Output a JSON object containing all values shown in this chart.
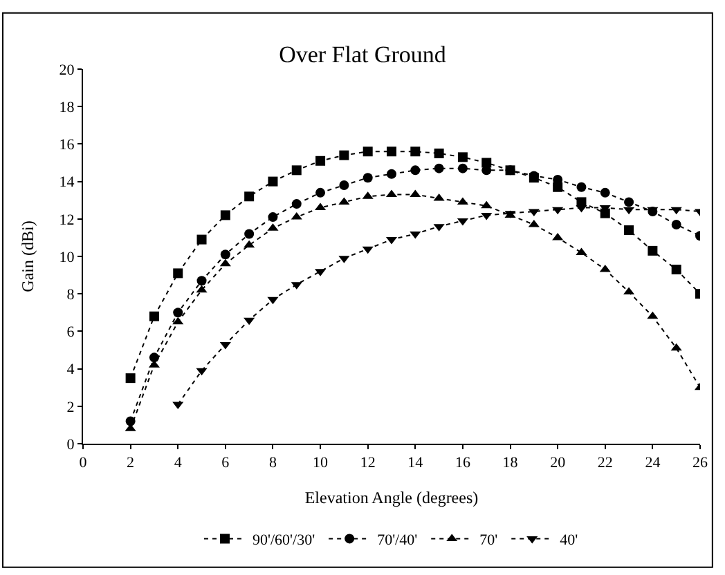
{
  "chart_data": {
    "type": "line",
    "title": "Over Flat Ground",
    "xlabel": "Elevation Angle (degrees)",
    "ylabel": "Gain (dBi)",
    "xlim": [
      0,
      26
    ],
    "xticks": [
      0,
      2,
      4,
      6,
      8,
      10,
      12,
      14,
      16,
      18,
      20,
      22,
      24,
      26
    ],
    "ylim": [
      0,
      20
    ],
    "yticks": [
      0,
      2,
      4,
      6,
      8,
      10,
      12,
      14,
      16,
      18,
      20
    ],
    "legend": "bottom",
    "line_style": "dotted",
    "series": [
      {
        "name": "90'/60'/30'",
        "color": "#000000",
        "marker": "square",
        "x": [
          2,
          3,
          4,
          5,
          6,
          7,
          8,
          9,
          10,
          11,
          12,
          13,
          14,
          15,
          16,
          17,
          18,
          19,
          20,
          21,
          22,
          23,
          24,
          25,
          26
        ],
        "values": [
          3.5,
          6.8,
          9.1,
          10.9,
          12.2,
          13.2,
          14.0,
          14.6,
          15.1,
          15.4,
          15.6,
          15.6,
          15.6,
          15.5,
          15.3,
          15.0,
          14.6,
          14.2,
          13.7,
          12.9,
          12.3,
          11.4,
          10.3,
          9.3,
          8.0
        ]
      },
      {
        "name": "70'/40'",
        "color": "#000000",
        "marker": "circle",
        "x": [
          2,
          3,
          4,
          5,
          6,
          7,
          8,
          9,
          10,
          11,
          12,
          13,
          14,
          15,
          16,
          17,
          18,
          19,
          20,
          21,
          22,
          23,
          24,
          25,
          26
        ],
        "values": [
          1.2,
          4.6,
          7.0,
          8.7,
          10.1,
          11.2,
          12.1,
          12.8,
          13.4,
          13.8,
          14.2,
          14.4,
          14.6,
          14.7,
          14.7,
          14.6,
          14.6,
          14.3,
          14.1,
          13.7,
          13.4,
          12.9,
          12.4,
          11.7,
          11.1
        ]
      },
      {
        "name": "70'",
        "color": "#000000",
        "marker": "triangle",
        "x": [
          2,
          3,
          4,
          5,
          6,
          7,
          8,
          9,
          10,
          11,
          12,
          13,
          14,
          15,
          16,
          17,
          18,
          19,
          20,
          21,
          22,
          23,
          24,
          25,
          26
        ],
        "values": [
          0.8,
          4.2,
          6.5,
          8.2,
          9.6,
          10.6,
          11.5,
          12.1,
          12.6,
          12.9,
          13.2,
          13.3,
          13.3,
          13.1,
          12.9,
          12.7,
          12.2,
          11.7,
          11.0,
          10.2,
          9.3,
          8.1,
          6.8,
          5.1,
          3.0
        ]
      },
      {
        "name": "40'",
        "color": "#000000",
        "marker": "triangle-down",
        "x": [
          4,
          5,
          6,
          7,
          8,
          9,
          10,
          11,
          12,
          13,
          14,
          15,
          16,
          17,
          18,
          19,
          20,
          21,
          22,
          23,
          24,
          25,
          26
        ],
        "values": [
          2.1,
          3.9,
          5.3,
          6.6,
          7.7,
          8.5,
          9.2,
          9.9,
          10.4,
          10.9,
          11.2,
          11.6,
          11.9,
          12.2,
          12.3,
          12.4,
          12.5,
          12.6,
          12.6,
          12.5,
          12.5,
          12.5,
          12.4
        ]
      }
    ]
  }
}
